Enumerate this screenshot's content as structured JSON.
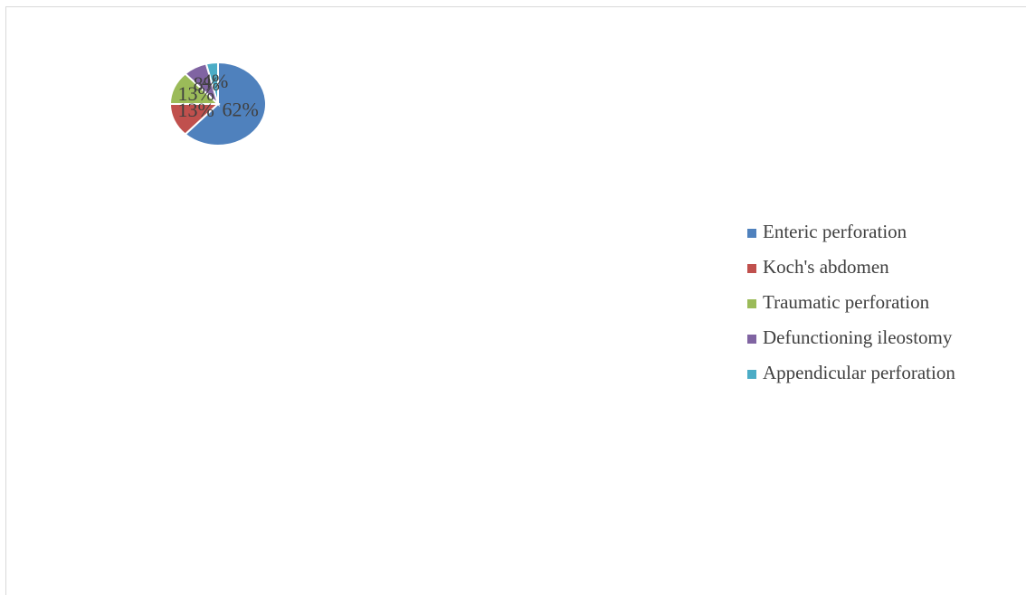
{
  "chart_data": {
    "type": "pie",
    "categories": [
      "Enteric perforation",
      "Koch's abdomen",
      "Traumatic perforation",
      "Defunctioning ileostomy",
      "Appendicular perforation"
    ],
    "values": [
      62,
      13,
      13,
      8,
      4
    ],
    "value_labels": [
      "62%",
      "13%",
      "13%",
      "8%",
      "4%"
    ],
    "colors": [
      "#4f81bd",
      "#c0504d",
      "#9bbb59",
      "#8064a2",
      "#4bacc6"
    ],
    "legend": "right"
  }
}
